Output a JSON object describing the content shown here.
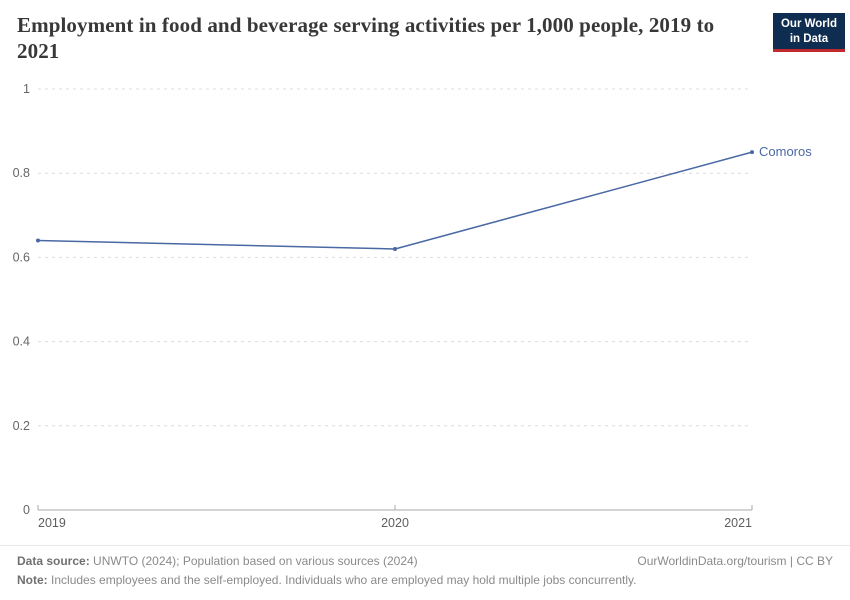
{
  "header": {
    "title": "Employment in food and beverage serving activities per 1,000 people, 2019 to 2021",
    "logo": {
      "line1": "Our World",
      "line2": "in Data",
      "bg_color": "#0f2d51",
      "accent_color": "#c0292e"
    }
  },
  "chart_data": {
    "type": "line",
    "title": "Employment in food and beverage serving activities per 1,000 people, 2019 to 2021",
    "x": [
      2019,
      2020,
      2021
    ],
    "xtick_labels": [
      "2019",
      "2020",
      "2021"
    ],
    "series": [
      {
        "name": "Comoros",
        "values": [
          0.64,
          0.62,
          0.85
        ],
        "color": "#4a69a4"
      }
    ],
    "xlabel": "",
    "ylabel": "",
    "ylim": [
      0,
      1
    ],
    "yticks": [
      0,
      0.2,
      0.4,
      0.6,
      0.8,
      1
    ],
    "ytick_labels": [
      "0",
      "0.2",
      "0.4",
      "0.6",
      "0.8",
      "1"
    ],
    "grid": "horizontal dashed",
    "legend_position": "end-of-line label",
    "colors": {
      "grid": "#dcdcdc",
      "axis": "#a8a8a8",
      "tick_label": "#666666",
      "series": "#4a69a4"
    }
  },
  "footer": {
    "datasource_label": "Data source:",
    "datasource_text": "UNWTO (2024); Population based on various sources (2024)",
    "credit": "OurWorldinData.org/tourism | CC BY",
    "note_label": "Note:",
    "note_text": "Includes employees and the self-employed. Individuals who are employed may hold multiple jobs concurrently."
  }
}
